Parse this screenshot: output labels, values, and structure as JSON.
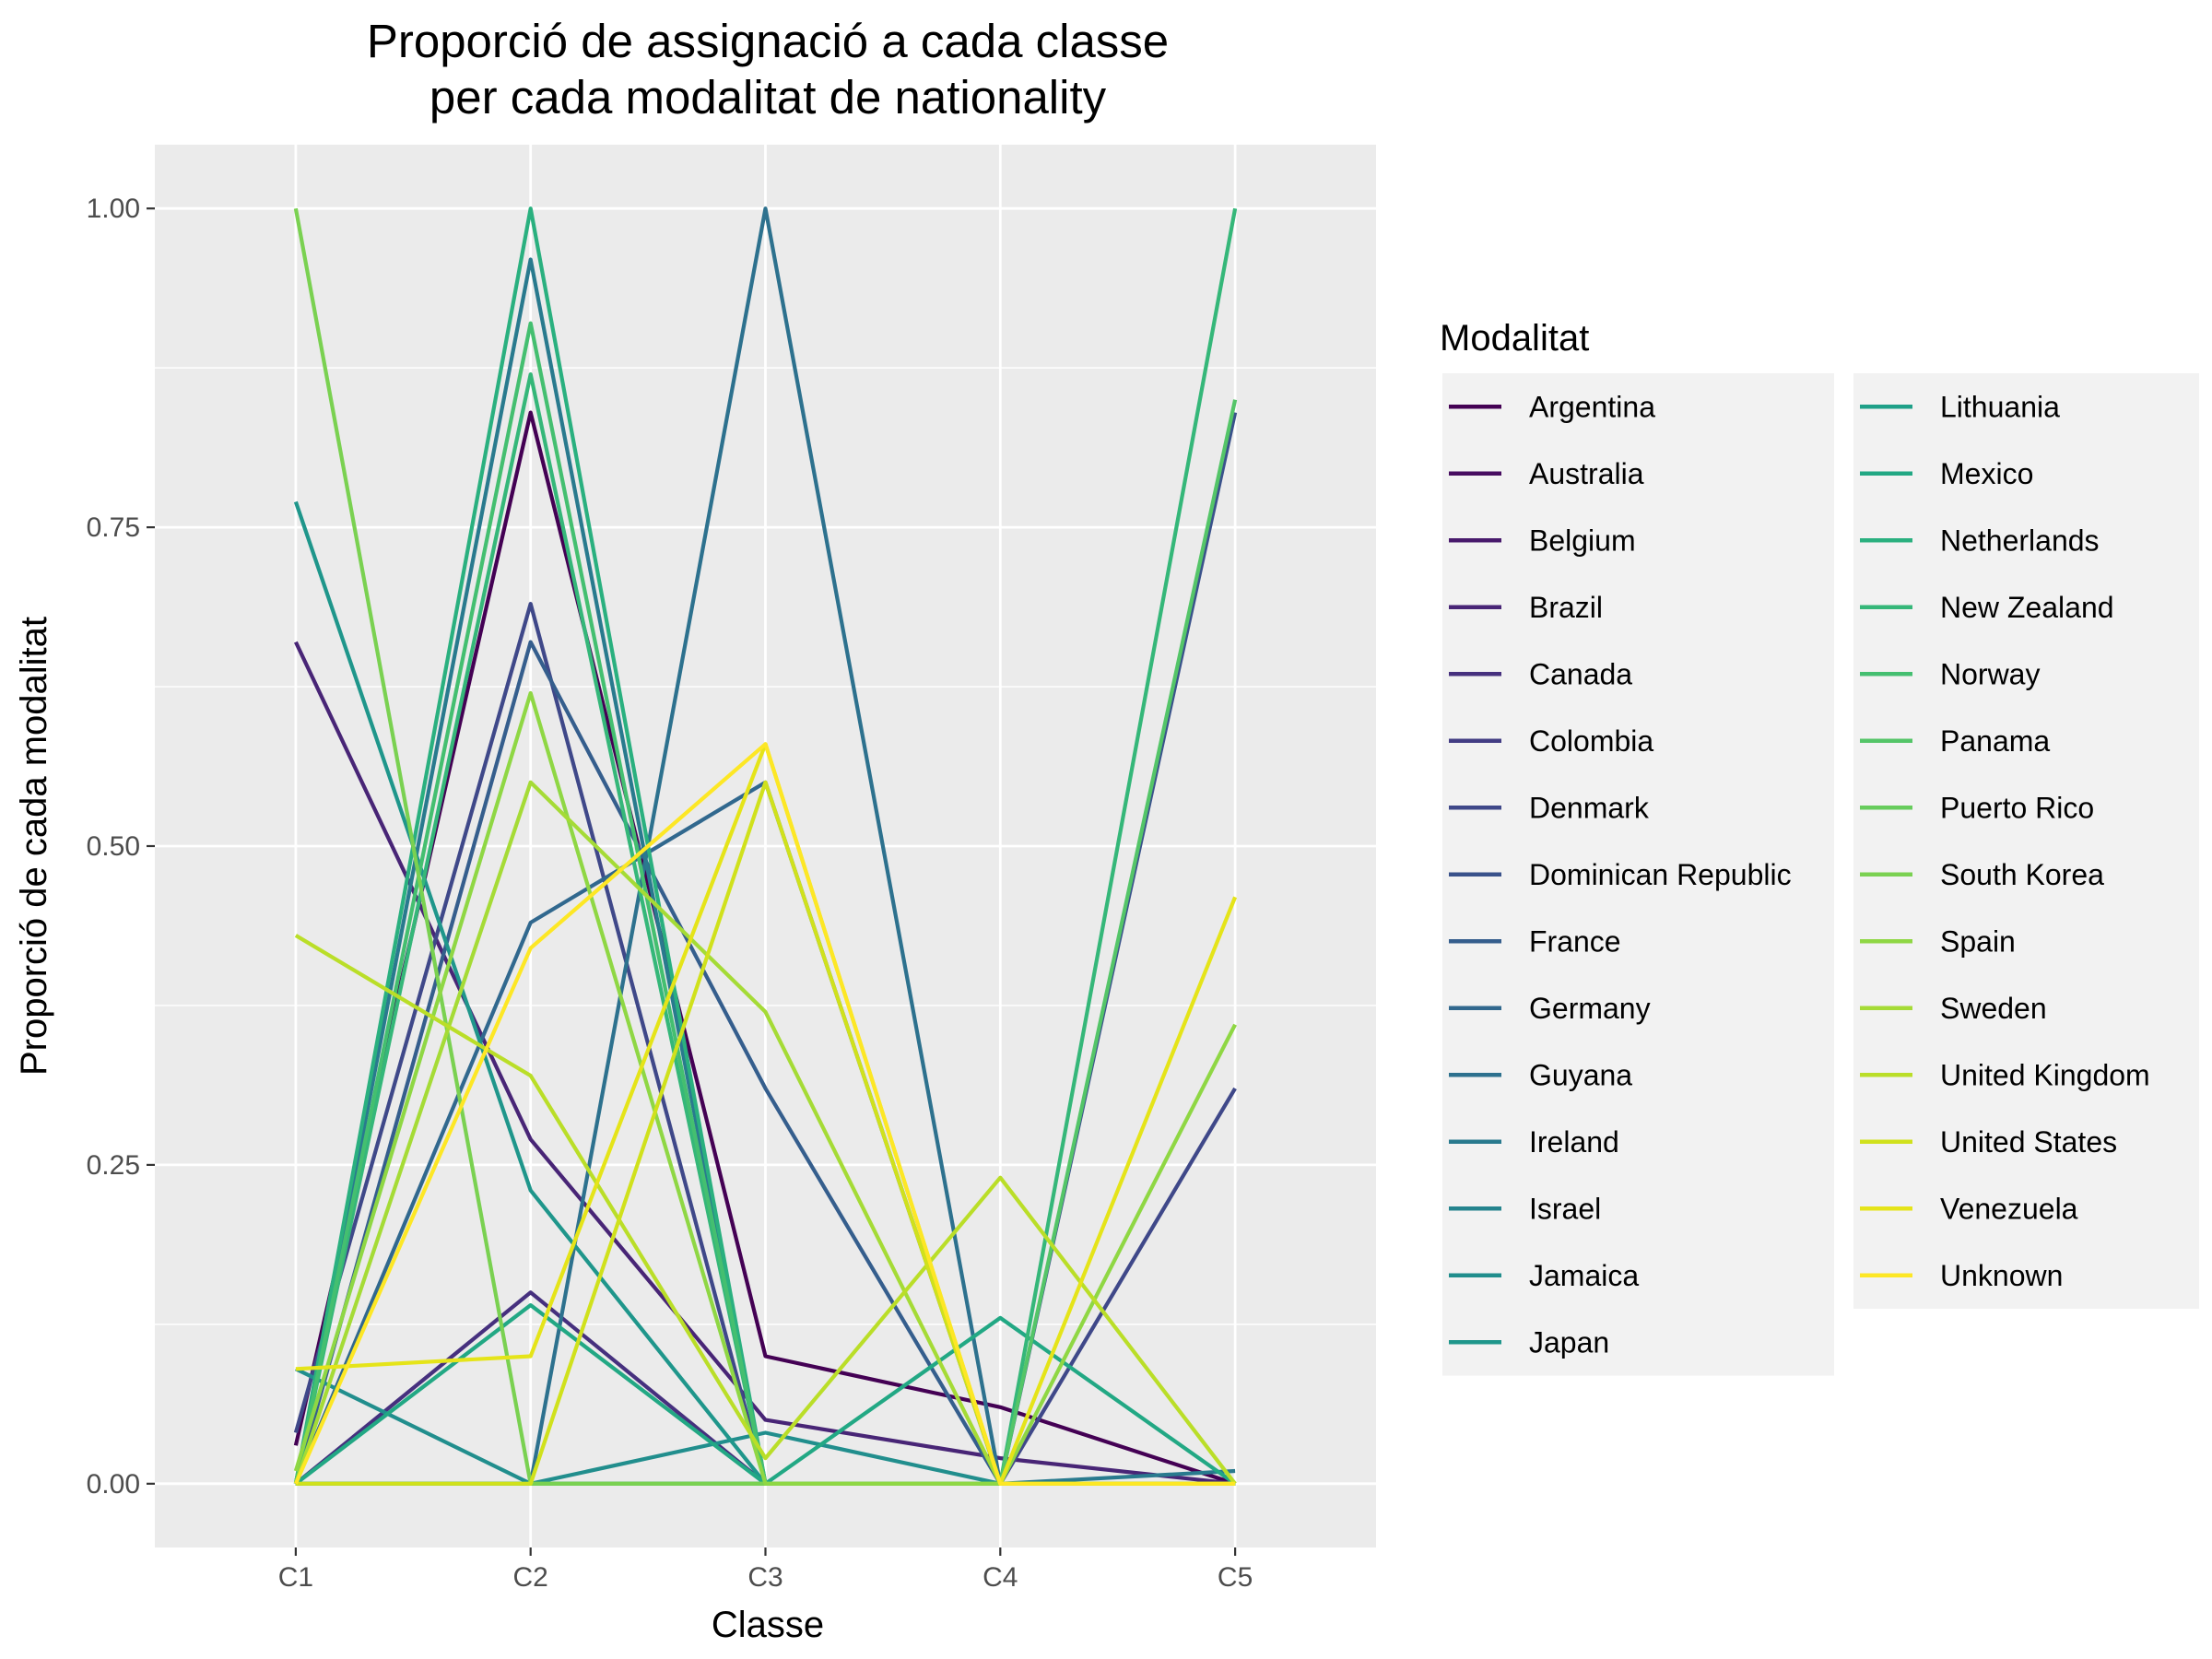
{
  "chart_data": {
    "type": "line",
    "title_lines": [
      "Proporció de assignació a cada classe",
      "per cada modalitat de nationality"
    ],
    "xlabel": "Classe",
    "ylabel": "Proporció de cada modalitat",
    "categories": [
      "C1",
      "C2",
      "C3",
      "C4",
      "C5"
    ],
    "y_ticks": [
      0,
      0.25,
      0.5,
      0.75,
      1
    ],
    "y_tick_labels": [
      "0.00",
      "0.25",
      "0.50",
      "0.75",
      "1.00"
    ],
    "ylim": [
      -0.05,
      1.05
    ],
    "grid": true,
    "legend_title": "Modalitat",
    "legend_position": "right",
    "series": [
      {
        "name": "Argentina",
        "color": "#440154",
        "values": [
          0.03,
          0.84,
          0.1,
          0.06,
          0.0
        ]
      },
      {
        "name": "Australia",
        "color": "#470d60",
        "values": [
          0.0,
          0.0,
          0.0,
          0.0,
          0.0
        ]
      },
      {
        "name": "Belgium",
        "color": "#481a6c",
        "values": [
          0.0,
          0.0,
          0.0,
          0.0,
          0.0
        ]
      },
      {
        "name": "Brazil",
        "color": "#482576",
        "values": [
          0.66,
          0.27,
          0.05,
          0.02,
          0.0
        ]
      },
      {
        "name": "Canada",
        "color": "#46307e",
        "values": [
          0.0,
          0.15,
          0.0,
          0.0,
          0.0
        ]
      },
      {
        "name": "Colombia",
        "color": "#433d84",
        "values": [
          0.0,
          0.0,
          0.0,
          0.0,
          0.0
        ]
      },
      {
        "name": "Denmark",
        "color": "#3f4889",
        "values": [
          0.04,
          0.69,
          0.0,
          0.0,
          0.31
        ]
      },
      {
        "name": "Dominican Republic",
        "color": "#3a528b",
        "values": [
          0.0,
          0.0,
          0.0,
          0.0,
          0.84
        ]
      },
      {
        "name": "France",
        "color": "#355e8d",
        "values": [
          0.0,
          0.66,
          0.31,
          0.0,
          0.0
        ]
      },
      {
        "name": "Germany",
        "color": "#31688e",
        "values": [
          0.0,
          0.44,
          0.55,
          0.0,
          0.0
        ]
      },
      {
        "name": "Guyana",
        "color": "#2d718e",
        "values": [
          0.0,
          0.0,
          1.0,
          0.0,
          0.0
        ]
      },
      {
        "name": "Ireland",
        "color": "#297a8e",
        "values": [
          0.0,
          0.96,
          0.0,
          0.0,
          0.01
        ]
      },
      {
        "name": "Israel",
        "color": "#25848e",
        "values": [
          0.0,
          0.0,
          0.0,
          0.0,
          0.0
        ]
      },
      {
        "name": "Jamaica",
        "color": "#218e8d",
        "values": [
          0.09,
          0.0,
          0.04,
          0.0,
          0.0
        ]
      },
      {
        "name": "Japan",
        "color": "#1f968b",
        "values": [
          0.77,
          0.23,
          0.0,
          0.0,
          0.0
        ]
      },
      {
        "name": "Lithuania",
        "color": "#1fa088",
        "values": [
          0.0,
          0.0,
          0.0,
          0.0,
          0.0
        ]
      },
      {
        "name": "Mexico",
        "color": "#22a884",
        "values": [
          0.0,
          0.14,
          0.0,
          0.13,
          0.0
        ]
      },
      {
        "name": "Netherlands",
        "color": "#2ab07f",
        "values": [
          0.0,
          1.0,
          0.0,
          0.0,
          0.0
        ]
      },
      {
        "name": "New Zealand",
        "color": "#35b779",
        "values": [
          0.0,
          0.87,
          0.0,
          0.0,
          1.0
        ]
      },
      {
        "name": "Norway",
        "color": "#44bf70",
        "values": [
          0.0,
          0.91,
          0.0,
          0.0,
          0.0
        ]
      },
      {
        "name": "Panama",
        "color": "#54c568",
        "values": [
          0.0,
          0.0,
          0.0,
          0.0,
          0.85
        ]
      },
      {
        "name": "Puerto Rico",
        "color": "#67cc5c",
        "values": [
          0.0,
          0.0,
          0.0,
          0.0,
          0.0
        ]
      },
      {
        "name": "South Korea",
        "color": "#7ad151",
        "values": [
          1.0,
          0.0,
          0.0,
          0.0,
          0.0
        ]
      },
      {
        "name": "Spain",
        "color": "#8fd744",
        "values": [
          0.01,
          0.62,
          0.0,
          0.0,
          0.36
        ]
      },
      {
        "name": "Sweden",
        "color": "#a5db36",
        "values": [
          0.0,
          0.55,
          0.37,
          0.0,
          0.0
        ]
      },
      {
        "name": "United Kingdom",
        "color": "#bade28",
        "values": [
          0.43,
          0.32,
          0.02,
          0.24,
          0.0
        ]
      },
      {
        "name": "United States",
        "color": "#d0e11c",
        "values": [
          0.0,
          0.0,
          0.55,
          0.0,
          0.0
        ]
      },
      {
        "name": "Venezuela",
        "color": "#e5e419",
        "values": [
          0.09,
          0.1,
          0.58,
          0.0,
          0.46
        ]
      },
      {
        "name": "Unknown",
        "color": "#fde725",
        "values": [
          0.0,
          0.42,
          0.58,
          0.0,
          0.0
        ]
      }
    ]
  }
}
